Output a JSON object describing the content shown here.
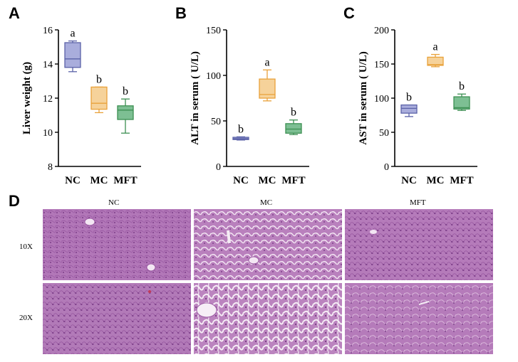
{
  "panel_letters": {
    "a": "A",
    "b": "B",
    "c": "C",
    "d": "D"
  },
  "chart_data": [
    {
      "type": "box",
      "ylabel": "Liver weight (g)",
      "yticks": [
        8,
        10,
        12,
        14,
        16
      ],
      "ylim": [
        8,
        16
      ],
      "categories": [
        "NC",
        "MC",
        "MFT"
      ],
      "boxes": [
        {
          "min": 13.55,
          "q1": 13.8,
          "median": 14.3,
          "q3": 15.25,
          "max": 15.35,
          "letter": "a"
        },
        {
          "min": 11.15,
          "q1": 11.35,
          "median": 11.7,
          "q3": 12.65,
          "max": 12.65,
          "letter": "b"
        },
        {
          "min": 9.95,
          "q1": 10.75,
          "median": 11.3,
          "q3": 11.55,
          "max": 11.95,
          "letter": "b"
        }
      ]
    },
    {
      "type": "box",
      "ylabel": "ALT in serum ( U/L)",
      "yticks": [
        0,
        50,
        100,
        150
      ],
      "ylim": [
        0,
        150
      ],
      "categories": [
        "NC",
        "MC",
        "MFT"
      ],
      "boxes": [
        {
          "min": 29,
          "q1": 29.5,
          "median": 30.5,
          "q3": 32,
          "max": 32.5,
          "letter": "b"
        },
        {
          "min": 72,
          "q1": 75,
          "median": 79,
          "q3": 96,
          "max": 106,
          "letter": "a"
        },
        {
          "min": 35,
          "q1": 36.5,
          "median": 41,
          "q3": 47,
          "max": 51,
          "letter": "b"
        }
      ]
    },
    {
      "type": "box",
      "ylabel": "AST in serum ( U/L)",
      "yticks": [
        0,
        50,
        100,
        150,
        200
      ],
      "ylim": [
        0,
        200
      ],
      "categories": [
        "NC",
        "MC",
        "MFT"
      ],
      "boxes": [
        {
          "min": 73,
          "q1": 78,
          "median": 85,
          "q3": 90,
          "max": 90,
          "letter": "b"
        },
        {
          "min": 146,
          "q1": 148,
          "median": 149,
          "q3": 160,
          "max": 164,
          "letter": "a"
        },
        {
          "min": 82,
          "q1": 84,
          "median": 86,
          "q3": 102,
          "max": 106,
          "letter": "b"
        }
      ]
    }
  ],
  "histology": {
    "columns": [
      "NC",
      "MC",
      "MFT"
    ],
    "rows": [
      "10X",
      "20X"
    ]
  },
  "colors": {
    "NC_fill": "#a9addc",
    "NC_stroke": "#5b62a8",
    "MC_fill": "#f6d29a",
    "MC_stroke": "#e9a23b",
    "MFT_fill": "#7dbf93",
    "MFT_stroke": "#3c8f52",
    "tissue_base": "#b277b8",
    "tissue_dark": "#8f4c99",
    "tissue_light": "#d6a9d6"
  }
}
